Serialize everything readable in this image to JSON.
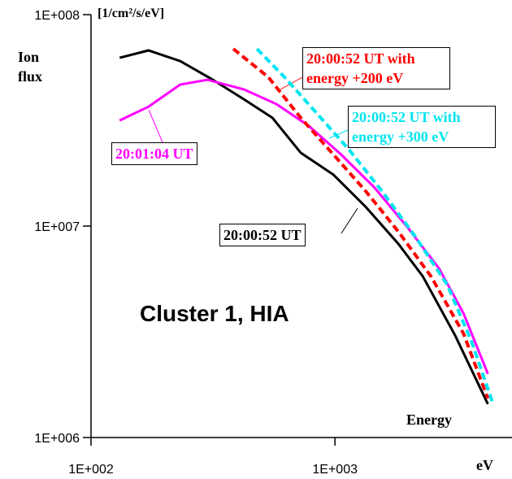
{
  "chart_data": {
    "type": "line",
    "title": "Cluster 1, HIA",
    "y_label": "Ion flux",
    "y_unit": "[1/cm²/s/eV]",
    "x_label": "Energy",
    "x_unit": "eV",
    "log_x": true,
    "log_y": true,
    "xlim": [
      100,
      5000
    ],
    "ylim": [
      1000000,
      100000000
    ],
    "xticks": [
      {
        "value": 100,
        "label": "1E+002"
      },
      {
        "value": 1000,
        "label": "1E+003"
      }
    ],
    "yticks": [
      {
        "value": 1000000,
        "label": "1E+006"
      },
      {
        "value": 10000000,
        "label": "1E+007"
      },
      {
        "value": 100000000,
        "label": "1E+008"
      }
    ],
    "series": [
      {
        "name": "20:00:52 UT",
        "color": "#000000",
        "dash": false,
        "x": [
          131,
          172,
          232,
          311,
          423,
          554,
          724,
          985,
          1339,
          1820,
          2291,
          3113,
          4233
        ],
        "values": [
          62500000,
          67700000,
          60300000,
          49700000,
          39800000,
          32500000,
          22200000,
          17500000,
          12300000,
          8230000,
          5780000,
          3030000,
          1440000
        ]
      },
      {
        "name": "20:01:04 UT",
        "color": "#ff00ff",
        "dash": false,
        "x": [
          131,
          172,
          232,
          300,
          423,
          575,
          783,
          1059,
          1445,
          1965,
          2672,
          3364,
          4233
        ],
        "values": [
          31600000,
          36700000,
          46700000,
          49200000,
          44300000,
          37800000,
          29700000,
          21800000,
          15300000,
          10000000,
          6300000,
          3870000,
          2000000
        ]
      },
      {
        "name": "20:00:52 UT with energy +200 eV",
        "color": "#ff0000",
        "dash": true,
        "x": [
          383,
          533,
          724,
          985,
          1339,
          1820,
          2477,
          3364,
          4233
        ],
        "values": [
          68900000,
          50600000,
          32500000,
          21800000,
          14600000,
          9400000,
          5780000,
          3100000,
          1530000
        ]
      },
      {
        "name": "20:00:52 UT with energy +300 eV",
        "color": "#00e5ee",
        "dash": true,
        "x": [
          479,
          621,
          845,
          1148,
          1561,
          2122,
          2884,
          3631,
          4431
        ],
        "values": [
          68900000,
          50600000,
          34000000,
          22800000,
          14600000,
          9000000,
          5280000,
          2840000,
          1460000
        ]
      }
    ]
  }
}
